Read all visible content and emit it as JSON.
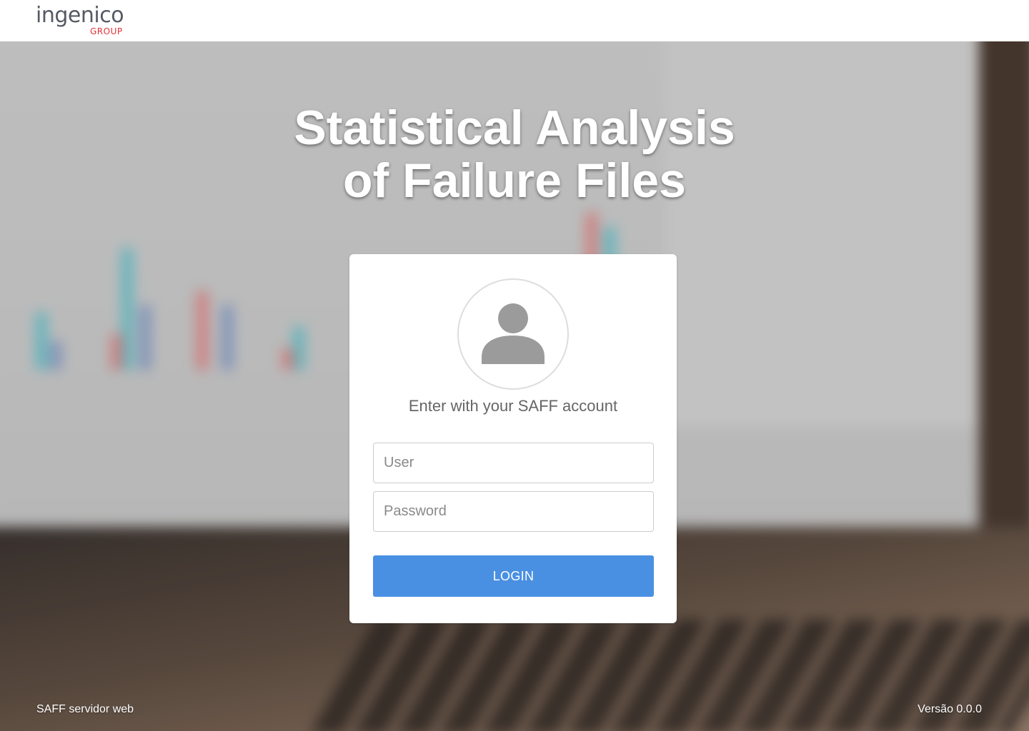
{
  "header": {
    "logo_main": "ingenico",
    "logo_sub": "GROUP",
    "logo_colors": {
      "main": "#555a64",
      "accent": "#e2313a"
    }
  },
  "hero": {
    "title_line1": "Statistical Analysis",
    "title_line2": "of Failure Files"
  },
  "login": {
    "avatar_icon": "user-icon",
    "subtitle": "Enter with your SAFF account",
    "user_placeholder": "User",
    "password_placeholder": "Password",
    "button_label": "LOGIN",
    "button_color": "#4a90e2"
  },
  "footer": {
    "left": "SAFF servidor web",
    "right": "Versão 0.0.0"
  }
}
